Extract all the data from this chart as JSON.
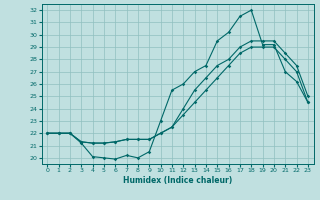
{
  "xlabel": "Humidex (Indice chaleur)",
  "bg_color": "#c0e0e0",
  "line_color": "#006868",
  "grid_color": "#90c0c0",
  "xlim": [
    -0.5,
    23.5
  ],
  "ylim": [
    19.5,
    32.5
  ],
  "xticks": [
    0,
    1,
    2,
    3,
    4,
    5,
    6,
    7,
    8,
    9,
    10,
    11,
    12,
    13,
    14,
    15,
    16,
    17,
    18,
    19,
    20,
    21,
    22,
    23
  ],
  "yticks": [
    20,
    21,
    22,
    23,
    24,
    25,
    26,
    27,
    28,
    29,
    30,
    31,
    32
  ],
  "line1_x": [
    0,
    1,
    2,
    3,
    4,
    5,
    6,
    7,
    8,
    9,
    10,
    11,
    12,
    13,
    14,
    15,
    16,
    17,
    18,
    19,
    20,
    21,
    22,
    23
  ],
  "line1_y": [
    22,
    22,
    22,
    21.2,
    20.1,
    20.0,
    19.9,
    20.2,
    20.0,
    20.5,
    23.0,
    25.5,
    26.0,
    27.0,
    27.5,
    29.5,
    30.2,
    31.5,
    32.0,
    29.2,
    29.2,
    27.0,
    26.2,
    24.5
  ],
  "line2_x": [
    0,
    1,
    2,
    3,
    4,
    5,
    6,
    7,
    8,
    9,
    10,
    11,
    12,
    13,
    14,
    15,
    16,
    17,
    18,
    19,
    20,
    21,
    22,
    23
  ],
  "line2_y": [
    22,
    22,
    22,
    21.3,
    21.2,
    21.2,
    21.3,
    21.5,
    21.5,
    21.5,
    22.0,
    22.5,
    24.0,
    25.5,
    26.5,
    27.5,
    28.0,
    29.0,
    29.5,
    29.5,
    29.5,
    28.5,
    27.5,
    25.0
  ],
  "line3_x": [
    0,
    1,
    2,
    3,
    4,
    5,
    6,
    7,
    8,
    9,
    10,
    11,
    12,
    13,
    14,
    15,
    16,
    17,
    18,
    19,
    20,
    21,
    22,
    23
  ],
  "line3_y": [
    22,
    22,
    22,
    21.3,
    21.2,
    21.2,
    21.3,
    21.5,
    21.5,
    21.5,
    22.0,
    22.5,
    23.5,
    24.5,
    25.5,
    26.5,
    27.5,
    28.5,
    29.0,
    29.0,
    29.0,
    28.0,
    27.0,
    24.5
  ]
}
